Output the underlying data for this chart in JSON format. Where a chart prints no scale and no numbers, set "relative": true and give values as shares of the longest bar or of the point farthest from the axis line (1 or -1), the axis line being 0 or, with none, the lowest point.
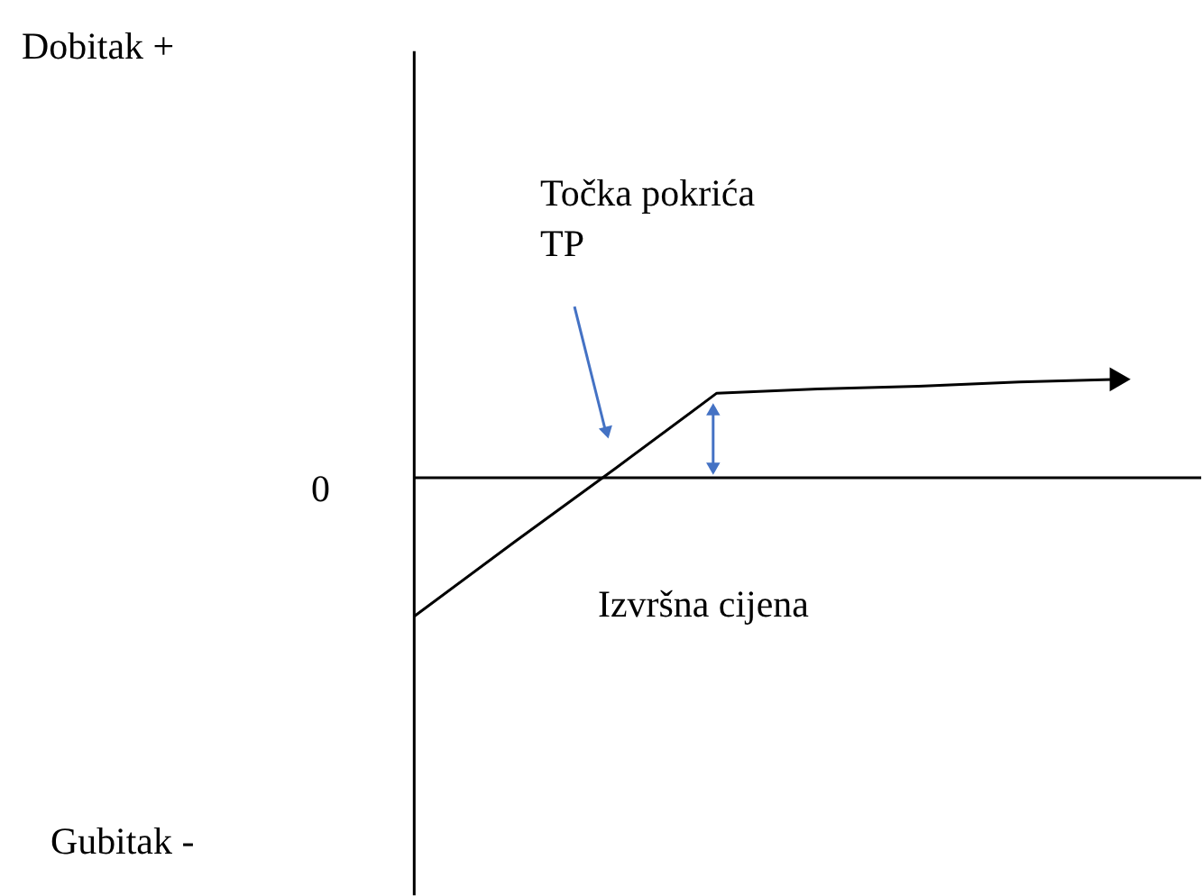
{
  "chart_data": {
    "type": "line",
    "relative": true,
    "categories": [
      null,
      null,
      null,
      null,
      null,
      null,
      null,
      null
    ],
    "series": [
      {
        "color": "#000000",
        "values": [
          -1,
          -0.46,
          0.07,
          0.61,
          0.64,
          0.66,
          0.69,
          0.71
        ]
      }
    ],
    "annotations": [
      "Dobitak +",
      "0",
      "Gubitak -",
      "Točka pokrića\nTP",
      "Izvršna cijena"
    ],
    "marker": "none",
    "line_style": "solid"
  }
}
